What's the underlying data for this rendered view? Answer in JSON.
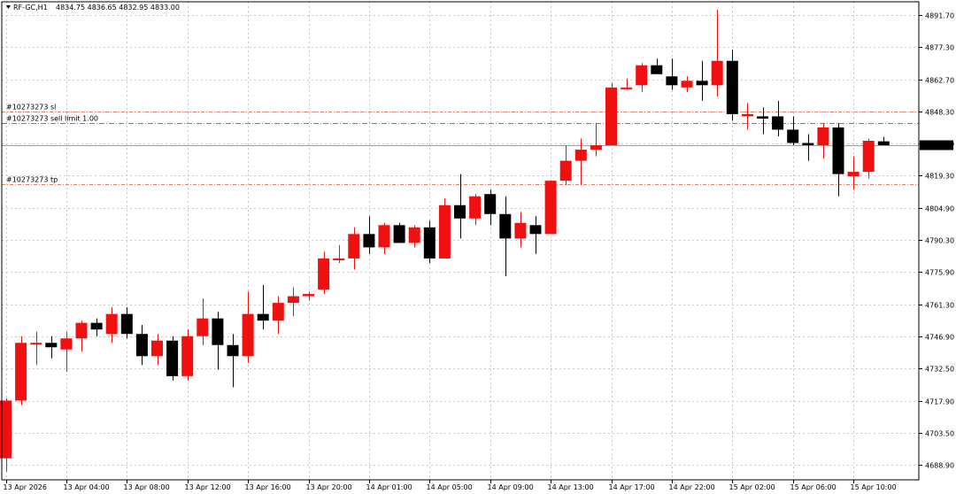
{
  "header": {
    "symbol": "RF-GC,H1",
    "ohlc": "4834.75 4836.65 4832.95 4833.00",
    "menu_icon": "triangle-down-icon"
  },
  "colors": {
    "bull": "#f01010",
    "bear": "#000000",
    "grid": "#c8c8c8",
    "order_line": "#e08060",
    "sell_limit_line": "#50a050",
    "bid_line": "#a0a0a0"
  },
  "orders": [
    {
      "label": "#10273273 sl",
      "price": 4848.0,
      "kind": "sl"
    },
    {
      "label": "#10273273 sell limit 1.00",
      "price": 4843.0,
      "kind": "sell_limit"
    },
    {
      "label": "#10273273 tp",
      "price": 4815.5,
      "kind": "tp"
    }
  ],
  "bid": {
    "label": "4833.00",
    "price": 4833.0
  },
  "chart_data": {
    "type": "candlestick",
    "ylim": [
      4682.3,
      4897.6
    ],
    "y_ticks": [
      4688.9,
      4703.5,
      4717.9,
      4732.5,
      4746.9,
      4761.3,
      4775.9,
      4790.3,
      4804.9,
      4819.3,
      4833.9,
      4848.3,
      4862.7,
      4877.3,
      4891.7
    ],
    "y_tick_labels": [
      "4688.90",
      "4703.50",
      "4717.90",
      "4732.50",
      "4746.90",
      "4761.30",
      "4775.90",
      "4790.30",
      "4804.90",
      "4819.30",
      "4833.90",
      "4848.30",
      "4862.70",
      "4877.30",
      "4891.70"
    ],
    "x_labels": [
      {
        "index": 0,
        "label": "13 Apr 2026"
      },
      {
        "index": 4,
        "label": "13 Apr 04:00"
      },
      {
        "index": 8,
        "label": "13 Apr 08:00"
      },
      {
        "index": 12,
        "label": "13 Apr 12:00"
      },
      {
        "index": 16,
        "label": "13 Apr 16:00"
      },
      {
        "index": 20,
        "label": "13 Apr 20:00"
      },
      {
        "index": 24,
        "label": "14 Apr 01:00"
      },
      {
        "index": 28,
        "label": "14 Apr 05:00"
      },
      {
        "index": 32,
        "label": "14 Apr 09:00"
      },
      {
        "index": 36,
        "label": "14 Apr 13:00"
      },
      {
        "index": 40,
        "label": "14 Apr 17:00"
      },
      {
        "index": 44,
        "label": "14 Apr 22:00"
      },
      {
        "index": 48,
        "label": "15 Apr 02:00"
      },
      {
        "index": 52,
        "label": "15 Apr 06:00"
      },
      {
        "index": 56,
        "label": "15 Apr 10:00"
      }
    ],
    "candles": [
      {
        "o": 4692,
        "h": 4719,
        "l": 4686,
        "c": 4718
      },
      {
        "o": 4718,
        "h": 4747,
        "l": 4716,
        "c": 4744
      },
      {
        "o": 4744,
        "h": 4749,
        "l": 4734,
        "c": 4744
      },
      {
        "o": 4744,
        "h": 4747,
        "l": 4737,
        "c": 4742
      },
      {
        "o": 4741,
        "h": 4749,
        "l": 4731,
        "c": 4746
      },
      {
        "o": 4746,
        "h": 4754,
        "l": 4740,
        "c": 4753
      },
      {
        "o": 4753,
        "h": 4755,
        "l": 4747,
        "c": 4750
      },
      {
        "o": 4748,
        "h": 4760,
        "l": 4744,
        "c": 4757
      },
      {
        "o": 4757,
        "h": 4760,
        "l": 4746,
        "c": 4748
      },
      {
        "o": 4748,
        "h": 4752,
        "l": 4734,
        "c": 4738
      },
      {
        "o": 4738,
        "h": 4748,
        "l": 4734,
        "c": 4745
      },
      {
        "o": 4745,
        "h": 4747,
        "l": 4727,
        "c": 4729
      },
      {
        "o": 4729,
        "h": 4750,
        "l": 4727,
        "c": 4747
      },
      {
        "o": 4747,
        "h": 4764,
        "l": 4743,
        "c": 4755
      },
      {
        "o": 4755,
        "h": 4758,
        "l": 4732,
        "c": 4743
      },
      {
        "o": 4743,
        "h": 4748,
        "l": 4724,
        "c": 4738
      },
      {
        "o": 4738,
        "h": 4767,
        "l": 4735,
        "c": 4757
      },
      {
        "o": 4757,
        "h": 4770,
        "l": 4750,
        "c": 4754
      },
      {
        "o": 4754,
        "h": 4765,
        "l": 4748,
        "c": 4762
      },
      {
        "o": 4762,
        "h": 4769,
        "l": 4756,
        "c": 4765
      },
      {
        "o": 4765,
        "h": 4767,
        "l": 4763,
        "c": 4766
      },
      {
        "o": 4768,
        "h": 4785,
        "l": 4766,
        "c": 4782
      },
      {
        "o": 4782,
        "h": 4788,
        "l": 4780,
        "c": 4782
      },
      {
        "o": 4782,
        "h": 4796,
        "l": 4777,
        "c": 4793
      },
      {
        "o": 4793,
        "h": 4801,
        "l": 4784,
        "c": 4787
      },
      {
        "o": 4787,
        "h": 4798,
        "l": 4784,
        "c": 4797
      },
      {
        "o": 4797,
        "h": 4798,
        "l": 4789,
        "c": 4789
      },
      {
        "o": 4789,
        "h": 4797,
        "l": 4787,
        "c": 4796
      },
      {
        "o": 4796,
        "h": 4799,
        "l": 4780,
        "c": 4782
      },
      {
        "o": 4782,
        "h": 4809,
        "l": 4782,
        "c": 4806
      },
      {
        "o": 4806,
        "h": 4820,
        "l": 4791,
        "c": 4800
      },
      {
        "o": 4800,
        "h": 4811,
        "l": 4797,
        "c": 4810
      },
      {
        "o": 4811,
        "h": 4813,
        "l": 4797,
        "c": 4802
      },
      {
        "o": 4802,
        "h": 4810,
        "l": 4774,
        "c": 4791
      },
      {
        "o": 4791,
        "h": 4803,
        "l": 4787,
        "c": 4798
      },
      {
        "o": 4797,
        "h": 4801,
        "l": 4784,
        "c": 4793
      },
      {
        "o": 4793,
        "h": 4817,
        "l": 4793,
        "c": 4817
      },
      {
        "o": 4817,
        "h": 4833,
        "l": 4815,
        "c": 4826
      },
      {
        "o": 4826,
        "h": 4836,
        "l": 4815,
        "c": 4831
      },
      {
        "o": 4831,
        "h": 4843,
        "l": 4828,
        "c": 4833
      },
      {
        "o": 4833,
        "h": 4861,
        "l": 4833,
        "c": 4859
      },
      {
        "o": 4859,
        "h": 4863,
        "l": 4858,
        "c": 4859
      },
      {
        "o": 4860,
        "h": 4870,
        "l": 4857,
        "c": 4869
      },
      {
        "o": 4869,
        "h": 4872,
        "l": 4866,
        "c": 4865
      },
      {
        "o": 4864,
        "h": 4872,
        "l": 4858,
        "c": 4860
      },
      {
        "o": 4859,
        "h": 4864,
        "l": 4857,
        "c": 4862
      },
      {
        "o": 4862,
        "h": 4871,
        "l": 4853,
        "c": 4860
      },
      {
        "o": 4860,
        "h": 4894,
        "l": 4855,
        "c": 4871
      },
      {
        "o": 4871,
        "h": 4876,
        "l": 4844,
        "c": 4847
      },
      {
        "o": 4846,
        "h": 4852,
        "l": 4840,
        "c": 4847
      },
      {
        "o": 4846,
        "h": 4850,
        "l": 4838,
        "c": 4845
      },
      {
        "o": 4846,
        "h": 4853,
        "l": 4837,
        "c": 4840
      },
      {
        "o": 4840,
        "h": 4846,
        "l": 4833,
        "c": 4834
      },
      {
        "o": 4834,
        "h": 4838,
        "l": 4826,
        "c": 4833
      },
      {
        "o": 4833,
        "h": 4843,
        "l": 4827,
        "c": 4841
      },
      {
        "o": 4841,
        "h": 4843,
        "l": 4810,
        "c": 4820
      },
      {
        "o": 4819,
        "h": 4828,
        "l": 4813,
        "c": 4821
      },
      {
        "o": 4821,
        "h": 4836,
        "l": 4818,
        "c": 4835
      },
      {
        "o": 4834.75,
        "h": 4836.65,
        "l": 4832.95,
        "c": 4833.0
      }
    ]
  }
}
